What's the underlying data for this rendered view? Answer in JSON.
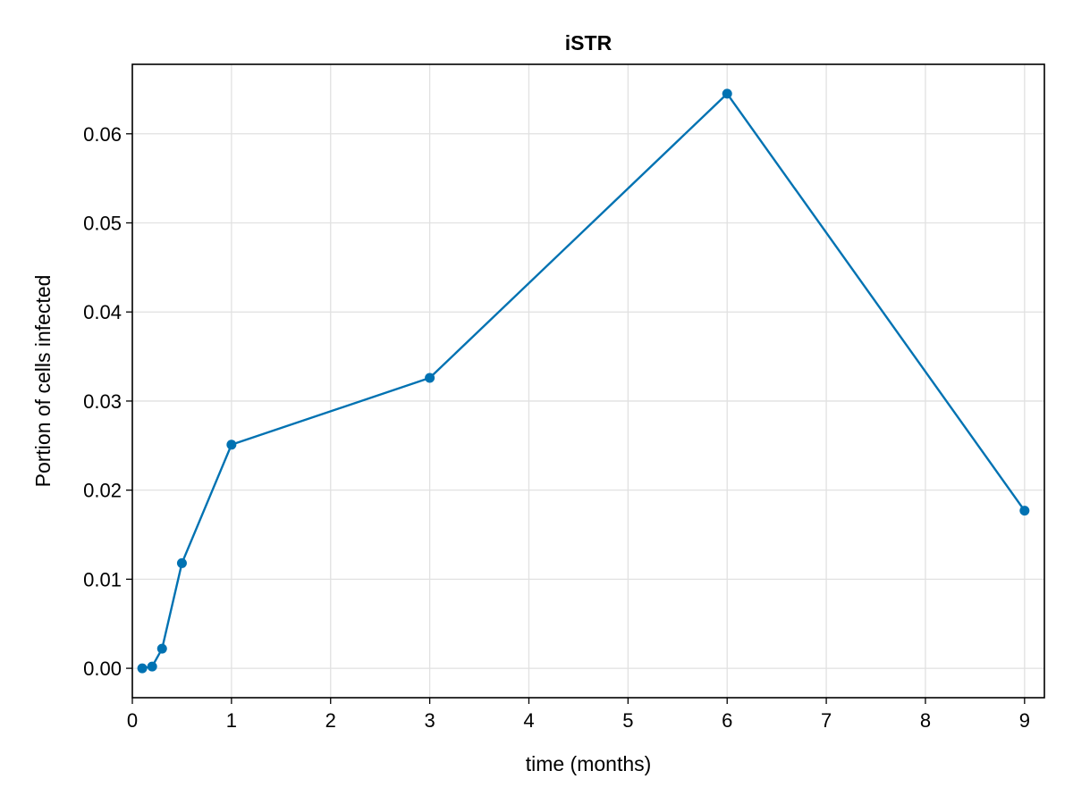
{
  "chart_data": {
    "type": "line",
    "title": "iSTR",
    "xlabel": "time (months)",
    "ylabel": "Portion of cells infected",
    "xlim": [
      0,
      9.2
    ],
    "ylim": [
      -0.0033,
      0.0678
    ],
    "xticks": [
      0,
      1,
      2,
      3,
      4,
      5,
      6,
      7,
      8,
      9
    ],
    "xtick_labels": [
      "0",
      "1",
      "2",
      "3",
      "4",
      "5",
      "6",
      "7",
      "8",
      "9"
    ],
    "yticks": [
      0.0,
      0.01,
      0.02,
      0.03,
      0.04,
      0.05,
      0.06
    ],
    "ytick_labels": [
      "0.00",
      "0.01",
      "0.02",
      "0.03",
      "0.04",
      "0.05",
      "0.06"
    ],
    "grid": true,
    "series": [
      {
        "color": "#0072b2",
        "x": [
          0.1,
          0.2,
          0.3,
          0.5,
          1,
          3,
          6,
          9
        ],
        "y": [
          0.0,
          0.0002,
          0.0022,
          0.0118,
          0.0251,
          0.0326,
          0.0645,
          0.0177
        ]
      }
    ]
  }
}
